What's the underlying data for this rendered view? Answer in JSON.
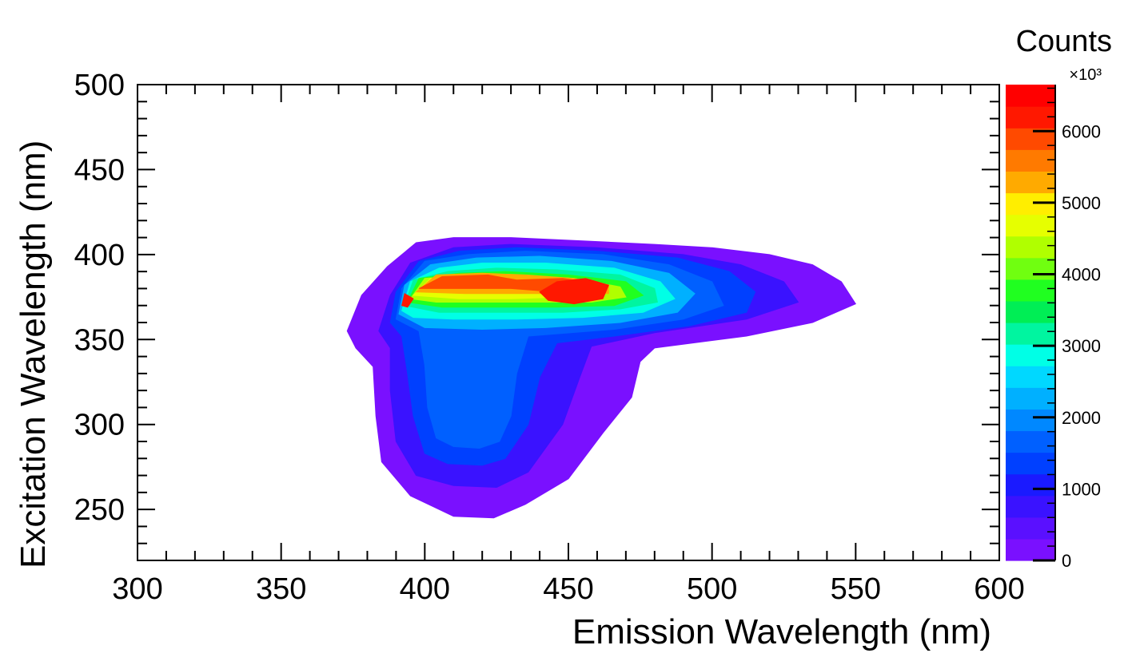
{
  "chart_data": {
    "type": "heatmap",
    "subtype": "filled-contour",
    "title": "",
    "xlabel": "Emission Wavelength (nm)",
    "ylabel": "Excitation Wavelength (nm)",
    "xlim": [
      300,
      600
    ],
    "ylim": [
      220,
      500
    ],
    "x_ticks": [
      300,
      350,
      400,
      450,
      500,
      550,
      600
    ],
    "y_ticks": [
      250,
      300,
      350,
      400,
      450,
      500
    ],
    "x_tick_labels": [
      "300",
      "350",
      "400",
      "450",
      "500",
      "550",
      "600"
    ],
    "y_tick_labels": [
      "250",
      "300",
      "350",
      "400",
      "450",
      "500"
    ],
    "grid": false,
    "colorbar": {
      "title": "Counts",
      "exponent_label": "×10³",
      "range": [
        0,
        6650
      ],
      "ticks": [
        0,
        1000,
        2000,
        3000,
        4000,
        5000,
        6000
      ],
      "tick_labels": [
        "0",
        "1000",
        "2000",
        "3000",
        "4000",
        "5000",
        "6000"
      ],
      "levels": 20,
      "colors": [
        "#7a10ff",
        "#5a10ff",
        "#3a12ff",
        "#1a1aff",
        "#0040ff",
        "#0060ff",
        "#0088ff",
        "#00b0ff",
        "#00d8ff",
        "#00ffe6",
        "#00f5a0",
        "#00ee55",
        "#20ff20",
        "#70ff10",
        "#b0ff00",
        "#e6ff00",
        "#ffee00",
        "#ffaa00",
        "#ff7a00",
        "#ff4a00",
        "#ff1800",
        "#ff0000"
      ]
    },
    "peaks": [
      {
        "emission": 455,
        "excitation": 373,
        "counts": 6600
      },
      {
        "emission": 393,
        "excitation": 372,
        "counts": 6500
      },
      {
        "emission": 425,
        "excitation": 330,
        "counts": 2000
      }
    ],
    "contour_regions": [
      {
        "level": 250,
        "points": [
          [
            373,
            355
          ],
          [
            378,
            376
          ],
          [
            387,
            393
          ],
          [
            397,
            407
          ],
          [
            410,
            410
          ],
          [
            430,
            410
          ],
          [
            455,
            408
          ],
          [
            480,
            406
          ],
          [
            500,
            404
          ],
          [
            520,
            400
          ],
          [
            535,
            394
          ],
          [
            545,
            384
          ],
          [
            550,
            371
          ],
          [
            535,
            360
          ],
          [
            512,
            352
          ],
          [
            480,
            345
          ],
          [
            475,
            337
          ],
          [
            472,
            316
          ],
          [
            462,
            295
          ],
          [
            450,
            268
          ],
          [
            435,
            253
          ],
          [
            424,
            245
          ],
          [
            410,
            246
          ],
          [
            395,
            258
          ],
          [
            385,
            278
          ],
          [
            383,
            305
          ],
          [
            382,
            334
          ],
          [
            376,
            345
          ]
        ]
      },
      {
        "level": 750,
        "points": [
          [
            384,
            355
          ],
          [
            388,
            376
          ],
          [
            395,
            395
          ],
          [
            410,
            404
          ],
          [
            430,
            406
          ],
          [
            460,
            404
          ],
          [
            490,
            400
          ],
          [
            510,
            394
          ],
          [
            525,
            384
          ],
          [
            530,
            372
          ],
          [
            512,
            362
          ],
          [
            480,
            354
          ],
          [
            458,
            346
          ],
          [
            454,
            328
          ],
          [
            448,
            300
          ],
          [
            436,
            272
          ],
          [
            425,
            263
          ],
          [
            410,
            264
          ],
          [
            397,
            270
          ],
          [
            390,
            290
          ],
          [
            388,
            320
          ],
          [
            388,
            345
          ]
        ]
      },
      {
        "level": 1250,
        "points": [
          [
            388,
            360
          ],
          [
            390,
            378
          ],
          [
            398,
            396
          ],
          [
            412,
            402
          ],
          [
            432,
            404
          ],
          [
            460,
            402
          ],
          [
            488,
            398
          ],
          [
            506,
            390
          ],
          [
            515,
            378
          ],
          [
            512,
            366
          ],
          [
            492,
            358
          ],
          [
            466,
            352
          ],
          [
            446,
            348
          ],
          [
            440,
            328
          ],
          [
            436,
            300
          ],
          [
            428,
            280
          ],
          [
            420,
            276
          ],
          [
            408,
            277
          ],
          [
            400,
            283
          ],
          [
            396,
            305
          ],
          [
            394,
            330
          ],
          [
            392,
            352
          ]
        ]
      },
      {
        "level": 1750,
        "points": [
          [
            390,
            362
          ],
          [
            392,
            380
          ],
          [
            400,
            396
          ],
          [
            415,
            400
          ],
          [
            435,
            402
          ],
          [
            462,
            400
          ],
          [
            485,
            394
          ],
          [
            500,
            384
          ],
          [
            504,
            370
          ],
          [
            490,
            362
          ],
          [
            466,
            356
          ],
          [
            436,
            352
          ],
          [
            432,
            330
          ],
          [
            430,
            305
          ],
          [
            426,
            290
          ],
          [
            419,
            286
          ],
          [
            410,
            287
          ],
          [
            404,
            292
          ],
          [
            401,
            310
          ],
          [
            400,
            335
          ],
          [
            398,
            355
          ]
        ]
      },
      {
        "level": 2250,
        "points": [
          [
            391,
            365
          ],
          [
            393,
            382
          ],
          [
            402,
            394
          ],
          [
            418,
            398
          ],
          [
            440,
            399
          ],
          [
            465,
            396
          ],
          [
            485,
            389
          ],
          [
            494,
            377
          ],
          [
            488,
            366
          ],
          [
            468,
            360
          ],
          [
            442,
            357
          ],
          [
            420,
            356
          ],
          [
            400,
            357
          ]
        ]
      },
      {
        "level": 2750,
        "points": [
          [
            392,
            367
          ],
          [
            395,
            384
          ],
          [
            405,
            392
          ],
          [
            420,
            395
          ],
          [
            442,
            395
          ],
          [
            466,
            392
          ],
          [
            482,
            384
          ],
          [
            487,
            374
          ],
          [
            476,
            366
          ],
          [
            455,
            363
          ],
          [
            432,
            362
          ],
          [
            410,
            362
          ],
          [
            396,
            363
          ]
        ]
      },
      {
        "level": 3250,
        "points": [
          [
            393,
            370
          ],
          [
            396,
            385
          ],
          [
            408,
            390
          ],
          [
            425,
            392
          ],
          [
            446,
            391
          ],
          [
            468,
            388
          ],
          [
            480,
            380
          ],
          [
            481,
            372
          ],
          [
            468,
            368
          ],
          [
            448,
            366
          ],
          [
            425,
            366
          ],
          [
            405,
            366
          ]
        ]
      },
      {
        "level": 3750,
        "points": [
          [
            394,
            372
          ],
          [
            398,
            386
          ],
          [
            412,
            389
          ],
          [
            428,
            390
          ],
          [
            450,
            388
          ],
          [
            470,
            384
          ],
          [
            476,
            376
          ],
          [
            466,
            370
          ],
          [
            446,
            369
          ],
          [
            426,
            369
          ],
          [
            406,
            369
          ]
        ]
      },
      {
        "level": 4250,
        "points": [
          [
            395,
            374
          ],
          [
            400,
            386
          ],
          [
            415,
            388
          ],
          [
            432,
            388
          ],
          [
            452,
            386
          ],
          [
            468,
            381
          ],
          [
            470,
            375
          ],
          [
            458,
            372
          ],
          [
            440,
            372
          ],
          [
            420,
            372
          ],
          [
            404,
            372
          ]
        ]
      },
      {
        "level": 4750,
        "points": [
          [
            396,
            376
          ],
          [
            402,
            386
          ],
          [
            417,
            387
          ],
          [
            433,
            386
          ],
          [
            450,
            384
          ],
          [
            463,
            380
          ],
          [
            462,
            376
          ],
          [
            448,
            375
          ],
          [
            430,
            374
          ],
          [
            412,
            374
          ]
        ]
      },
      {
        "level": 5250,
        "points": [
          [
            397,
            378
          ],
          [
            404,
            388
          ],
          [
            420,
            389
          ],
          [
            435,
            388
          ],
          [
            452,
            386
          ],
          [
            464,
            382
          ],
          [
            464,
            377
          ],
          [
            450,
            377
          ],
          [
            432,
            377
          ],
          [
            414,
            377
          ]
        ]
      },
      {
        "level": 5750,
        "points": [
          [
            398,
            380
          ],
          [
            406,
            387
          ],
          [
            422,
            388
          ],
          [
            432,
            385
          ],
          [
            448,
            386
          ],
          [
            460,
            383
          ],
          [
            458,
            378
          ],
          [
            446,
            378
          ],
          [
            430,
            380
          ],
          [
            415,
            380
          ]
        ]
      },
      {
        "level": 6250,
        "points": [
          [
            440,
            378
          ],
          [
            446,
            384
          ],
          [
            456,
            386
          ],
          [
            464,
            382
          ],
          [
            462,
            374
          ],
          [
            452,
            371
          ],
          [
            443,
            373
          ]
        ]
      },
      {
        "level": 6250,
        "points": [
          [
            392,
            370
          ],
          [
            393,
            377
          ],
          [
            396,
            374
          ],
          [
            394,
            369
          ]
        ]
      }
    ]
  }
}
